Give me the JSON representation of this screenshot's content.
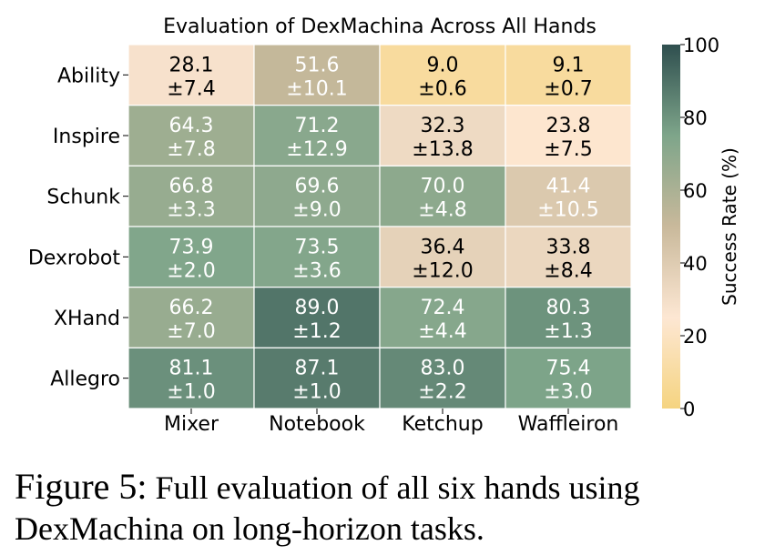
{
  "chart_data": {
    "type": "heatmap",
    "title": "Evaluation of DexMachina Across All Hands",
    "rows": [
      "Ability",
      "Inspire",
      "Schunk",
      "Dexrobot",
      "XHand",
      "Allegro"
    ],
    "columns": [
      "Mixer",
      "Notebook",
      "Ketchup",
      "Waffleiron"
    ],
    "values": [
      [
        28.1,
        51.6,
        9.0,
        9.1
      ],
      [
        64.3,
        71.2,
        32.3,
        23.8
      ],
      [
        66.8,
        69.6,
        70.0,
        41.4
      ],
      [
        73.9,
        73.5,
        36.4,
        33.8
      ],
      [
        66.2,
        89.0,
        72.4,
        80.3
      ],
      [
        81.1,
        87.1,
        83.0,
        75.4
      ]
    ],
    "errors": [
      [
        7.4,
        10.1,
        0.6,
        0.7
      ],
      [
        7.8,
        12.9,
        13.8,
        7.5
      ],
      [
        3.3,
        9.0,
        4.8,
        10.5
      ],
      [
        2.0,
        3.6,
        12.0,
        8.4
      ],
      [
        7.0,
        1.2,
        4.4,
        1.3
      ],
      [
        1.0,
        1.0,
        2.2,
        3.0
      ]
    ],
    "colorbar": {
      "label": "Success Rate (%)",
      "range": [
        0,
        100
      ],
      "ticks": [
        0,
        20,
        40,
        60,
        80,
        100
      ],
      "colors": [
        {
          "stop": 0,
          "color": "#f5d480"
        },
        {
          "stop": 25,
          "color": "#fde7d3"
        },
        {
          "stop": 50,
          "color": "#c9b99b"
        },
        {
          "stop": 75,
          "color": "#7ea58a"
        },
        {
          "stop": 100,
          "color": "#2f4f4f"
        }
      ]
    },
    "text_color_threshold": 40
  },
  "caption": {
    "label": "Figure 5:",
    "text": "Full evaluation of all six hands using DexMachina on long-horizon tasks."
  }
}
